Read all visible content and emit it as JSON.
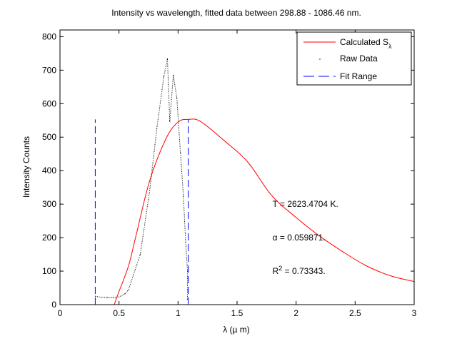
{
  "chart_data": {
    "type": "line",
    "title": "Intensity vs wavelength, fitted data between 298.88 - 1086.46 nm.",
    "xlabel": "λ (µ m)",
    "ylabel": "Intensity Counts",
    "xlim": [
      0,
      3
    ],
    "ylim": [
      0,
      820
    ],
    "xticks": [
      0,
      0.5,
      1,
      1.5,
      2,
      2.5,
      3
    ],
    "xtick_labels": [
      "0",
      "0.5",
      "1",
      "1.5",
      "2",
      "2.5",
      "3"
    ],
    "yticks": [
      0,
      100,
      200,
      300,
      400,
      500,
      600,
      700,
      800
    ],
    "ytick_labels": [
      "0",
      "100",
      "200",
      "300",
      "400",
      "500",
      "600",
      "700",
      "800"
    ],
    "grid": false,
    "legend": {
      "placement": "top-right",
      "entries": [
        {
          "label": "Calculated S",
          "subscript": "λ",
          "style": "solid",
          "color": "#ff0000"
        },
        {
          "label": "Raw Data",
          "style": "dots",
          "color": "#000000"
        },
        {
          "label": "Fit Range",
          "style": "dashed",
          "color": "#0000ff"
        }
      ]
    },
    "series": [
      {
        "name": "Calculated S",
        "color": "#ff0000",
        "style": "solid",
        "x": [
          0.46,
          0.49,
          0.58,
          0.64,
          0.76,
          0.9,
          1.0,
          1.085,
          1.19,
          1.39,
          1.59,
          1.79,
          1.99,
          2.19,
          2.4,
          2.6,
          2.8,
          3.0
        ],
        "y": [
          0,
          30,
          115,
          200,
          370,
          497,
          545,
          553,
          547,
          490,
          426,
          327,
          263,
          207,
          157,
          115,
          86,
          69
        ]
      },
      {
        "name": "Raw Data",
        "color": "#000000",
        "style": "dots",
        "x": [
          0.3,
          0.35,
          0.4,
          0.45,
          0.5,
          0.55,
          0.58,
          0.68,
          0.76,
          0.82,
          0.88,
          0.91,
          0.93,
          0.96,
          0.99,
          1.02,
          1.045,
          1.065,
          1.08,
          1.08
        ],
        "y": [
          25,
          22,
          21,
          21,
          23,
          32,
          44,
          150,
          341,
          525,
          681,
          734,
          547,
          685,
          617,
          455,
          327,
          185,
          100,
          16
        ]
      },
      {
        "name": "Fit Range",
        "color": "#0000ff",
        "style": "dashed",
        "vlines": [
          0.29888,
          1.08646
        ],
        "ymax": 553
      }
    ],
    "annotations": [
      {
        "text": "T = 2623.4704 K.",
        "x": 1.8,
        "y": 300
      },
      {
        "text": "α = 0.059871.",
        "x": 1.8,
        "y": 200
      },
      {
        "prefix": "R",
        "sup": "2",
        "text": " = 0.73343.",
        "x": 1.8,
        "y": 100
      }
    ]
  }
}
